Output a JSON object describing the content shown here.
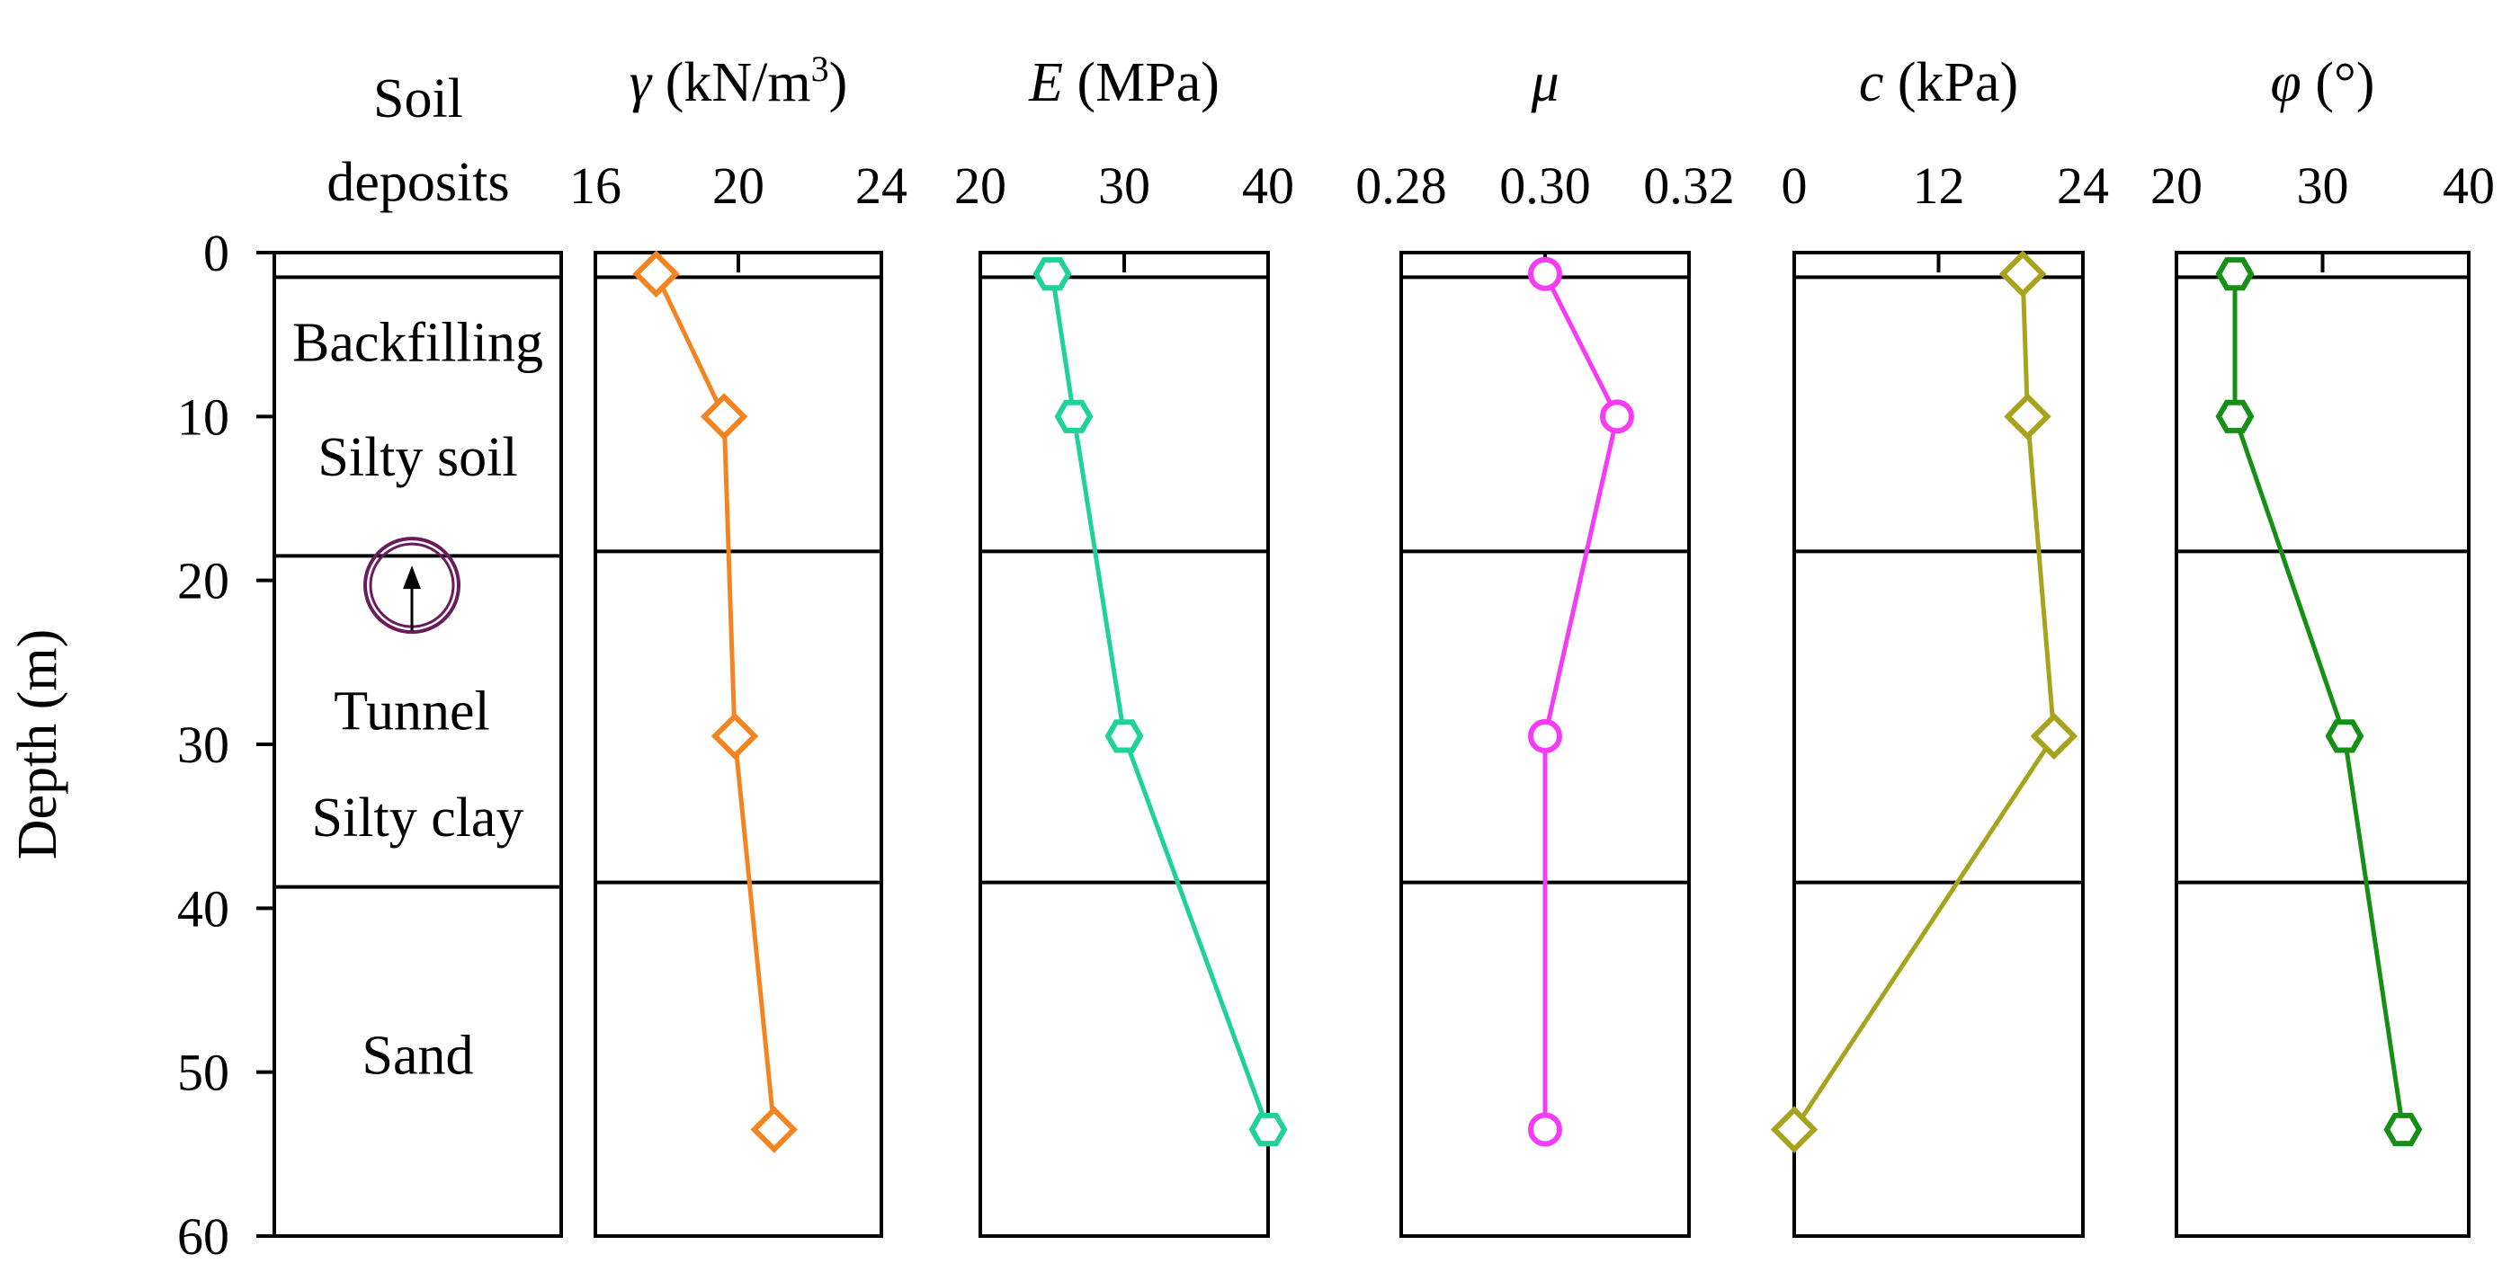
{
  "chart_data": {
    "type": "line",
    "y_axis": {
      "label": "Depth (m)",
      "ylim": [
        0,
        60
      ],
      "ticks": [
        0,
        10,
        20,
        30,
        40,
        50,
        60
      ],
      "inverted": true
    },
    "soil_column": {
      "title_line1": "Soil",
      "title_line2": "deposits",
      "layer_boundaries": [
        1.5,
        18.5,
        38.7
      ],
      "layers": [
        {
          "name": "Backfilling",
          "label_depth": 5.5
        },
        {
          "name": "Silty soil",
          "label_depth": 12.5
        },
        {
          "name": "Silty clay",
          "label_depth": 34.5
        },
        {
          "name": "Sand",
          "label_depth": 49
        }
      ],
      "tunnel": {
        "label": "Tunnel",
        "center_depth": 20.3,
        "label_depth": 28
      }
    },
    "panels": [
      {
        "id": "gamma",
        "title_symbol": "γ",
        "title_unit": " (kN/m",
        "title_sup": "3",
        "title_tail": ")",
        "xlim": [
          16,
          24
        ],
        "ticks": [
          16,
          20,
          24
        ],
        "tick_labels": [
          "16",
          "20",
          "24"
        ],
        "color": "#f28522",
        "marker": "diamond",
        "depth": [
          1.3,
          10,
          29.5,
          53.5
        ],
        "values": [
          17.7,
          19.6,
          19.9,
          21.0
        ]
      },
      {
        "id": "E",
        "title_symbol": "E",
        "title_unit": " (MPa)",
        "xlim": [
          20,
          40
        ],
        "ticks": [
          20,
          30,
          40
        ],
        "tick_labels": [
          "20",
          "30",
          "40"
        ],
        "color": "#1ed29a",
        "marker": "hexagon",
        "depth": [
          1.3,
          10,
          29.5,
          53.5
        ],
        "values": [
          25.0,
          26.5,
          30.0,
          40.0
        ]
      },
      {
        "id": "mu",
        "title_symbol": "μ",
        "title_unit": "",
        "xlim": [
          0.28,
          0.32
        ],
        "ticks": [
          0.28,
          0.3,
          0.32
        ],
        "tick_labels": [
          "0.28",
          "0.30",
          "0.32"
        ],
        "color": "#f53bf5",
        "marker": "circle",
        "depth": [
          1.3,
          10,
          29.5,
          53.5
        ],
        "values": [
          0.3,
          0.31,
          0.3,
          0.3
        ]
      },
      {
        "id": "c",
        "title_symbol": "c",
        "title_unit": " (kPa)",
        "xlim": [
          0,
          24
        ],
        "ticks": [
          0,
          12,
          24
        ],
        "tick_labels": [
          "0",
          "12",
          "24"
        ],
        "color": "#a8a31c",
        "marker": "diamond",
        "depth": [
          1.3,
          10,
          29.5,
          53.5
        ],
        "values": [
          19.0,
          19.4,
          21.6,
          0.0
        ]
      },
      {
        "id": "phi",
        "title_symbol": "φ",
        "title_unit": " (°)",
        "xlim": [
          20,
          40
        ],
        "ticks": [
          20,
          30,
          40
        ],
        "tick_labels": [
          "20",
          "30",
          "40"
        ],
        "color": "#168f16",
        "marker": "hexagon",
        "depth": [
          1.3,
          10,
          29.5,
          53.5
        ],
        "values": [
          24.0,
          24.0,
          31.5,
          35.5
        ]
      }
    ]
  }
}
